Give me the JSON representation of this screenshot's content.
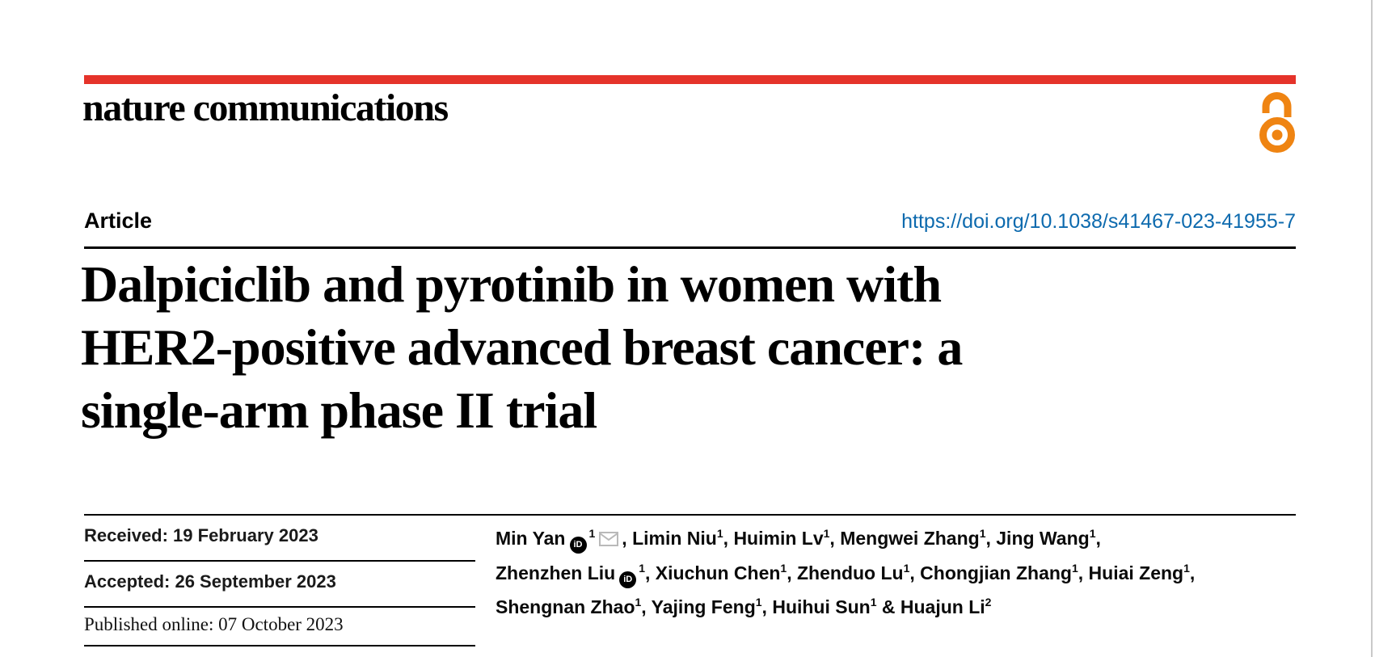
{
  "page": {
    "background": "#ffffff",
    "edge_line_color": "#c9c9c9"
  },
  "masthead": {
    "bar_color": "#e5332a",
    "journal": "nature communications",
    "open_access_color": "#ef8412"
  },
  "header": {
    "kicker": "Article",
    "doi": "https://doi.org/10.1038/s41467-023-41955-7",
    "doi_color": "#0d6aae",
    "title_lines": [
      "Dalpiciclib and pyrotinib in women with",
      "HER2-positive advanced breast cancer: a",
      "single-arm phase II trial"
    ]
  },
  "dates": {
    "rows": [
      {
        "text": "Received: 19 February 2023",
        "font": "sans"
      },
      {
        "text": "Accepted: 26 September 2023",
        "font": "sans"
      },
      {
        "text": "Published online: 07 October 2023",
        "font": "serif"
      }
    ]
  },
  "authors": {
    "icons": {
      "orcid_glyph": "iD",
      "email_stroke": "#b9b9b9"
    },
    "lines": [
      [
        {
          "name": "Min Yan",
          "orcid": true,
          "sup": "1",
          "email": true,
          "trail": ", "
        },
        {
          "name": "Limin Niu",
          "sup": "1",
          "trail": ", "
        },
        {
          "name": "Huimin Lv",
          "sup": "1",
          "trail": ", "
        },
        {
          "name": "Mengwei Zhang",
          "sup": "1",
          "trail": ", "
        },
        {
          "name": "Jing Wang",
          "sup": "1",
          "trail": ","
        }
      ],
      [
        {
          "name": "Zhenzhen Liu",
          "orcid": true,
          "sup": "1",
          "trail": ", "
        },
        {
          "name": "Xiuchun Chen",
          "sup": "1",
          "trail": ", "
        },
        {
          "name": "Zhenduo Lu",
          "sup": "1",
          "trail": ", "
        },
        {
          "name": "Chongjian Zhang",
          "sup": "1",
          "trail": ", "
        },
        {
          "name": "Huiai Zeng",
          "sup": "1",
          "trail": ","
        }
      ],
      [
        {
          "name": "Shengnan Zhao",
          "sup": "1",
          "trail": ", "
        },
        {
          "name": "Yajing Feng",
          "sup": "1",
          "trail": ", "
        },
        {
          "name": "Huihui Sun",
          "sup": "1",
          "trail": " & "
        },
        {
          "name": "Huajun Li",
          "sup": "2",
          "trail": ""
        }
      ]
    ]
  }
}
